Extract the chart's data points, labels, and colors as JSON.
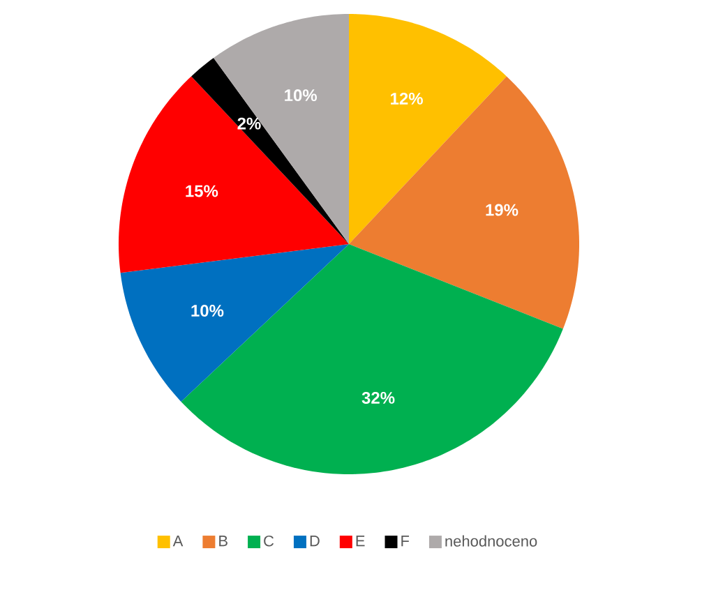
{
  "chart_data": {
    "type": "pie",
    "categories": [
      "A",
      "B",
      "C",
      "D",
      "E",
      "F",
      "nehodnoceno"
    ],
    "values": [
      12,
      19,
      32,
      10,
      15,
      2,
      10
    ],
    "value_labels": [
      "12%",
      "19%",
      "32%",
      "10%",
      "15%",
      "2%",
      "10%"
    ],
    "colors": [
      "#ffc000",
      "#ed7d31",
      "#00b050",
      "#0070c0",
      "#ff0000",
      "#000000",
      "#aeaaaa"
    ],
    "legend": "bottom"
  }
}
